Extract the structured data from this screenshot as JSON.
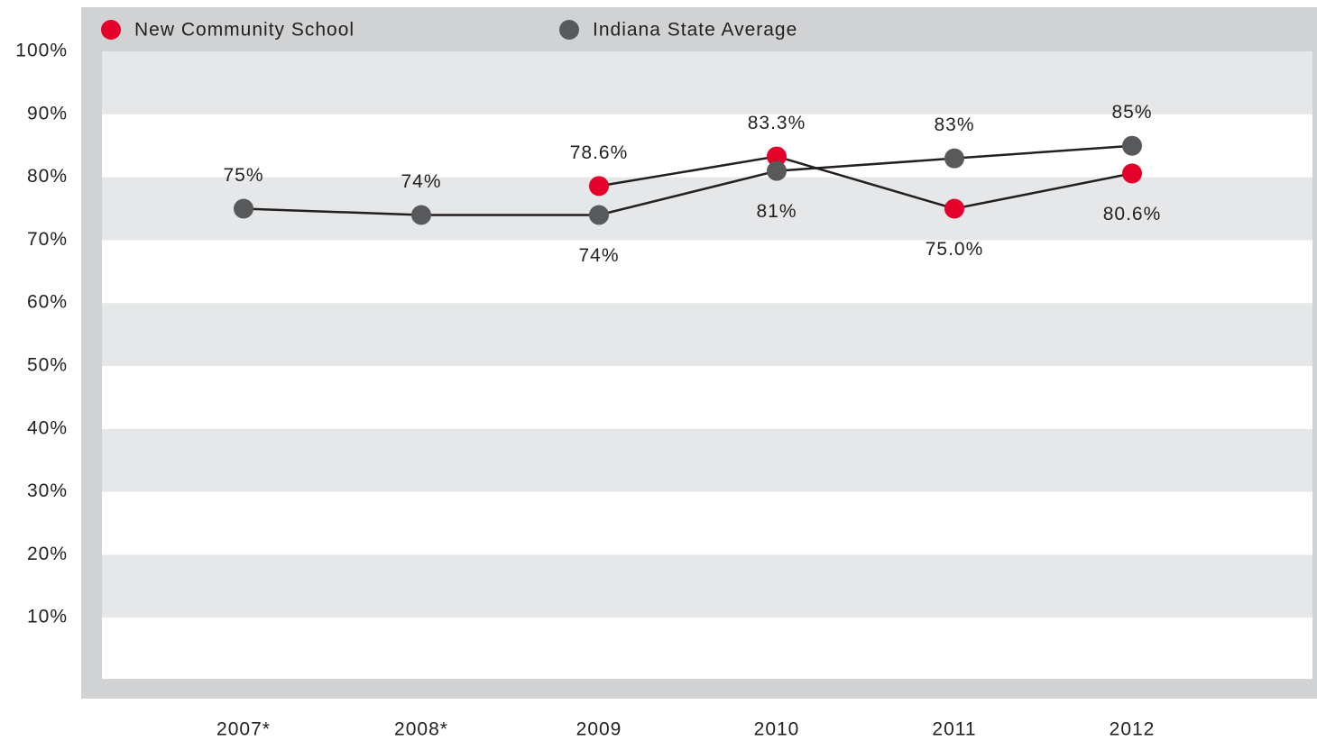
{
  "chart_data": {
    "type": "line",
    "categories": [
      "2007*",
      "2008*",
      "2009",
      "2010",
      "2011",
      "2012"
    ],
    "series": [
      {
        "name": "New Community School",
        "color": "#e4002b",
        "values": [
          null,
          null,
          78.6,
          83.3,
          75,
          80.6
        ],
        "value_labels": [
          null,
          null,
          "78.6%",
          "83.3%",
          "75.0%",
          "80.6%"
        ]
      },
      {
        "name": "Indiana State Average",
        "color": "#58595b",
        "values": [
          75,
          74,
          74,
          81,
          83,
          85
        ],
        "value_labels": [
          "75%",
          "74%",
          "74%",
          "81%",
          "83%",
          "85%"
        ]
      }
    ],
    "ylim": [
      0,
      100
    ],
    "yticks": [
      {
        "value": 10,
        "label": "10%"
      },
      {
        "value": 20,
        "label": "20%"
      },
      {
        "value": 30,
        "label": "30%"
      },
      {
        "value": 40,
        "label": "40%"
      },
      {
        "value": 50,
        "label": "50%"
      },
      {
        "value": 60,
        "label": "60%"
      },
      {
        "value": 70,
        "label": "70%"
      },
      {
        "value": 80,
        "label": "80%"
      },
      {
        "value": 90,
        "label": "90%"
      },
      {
        "value": 100,
        "label": "100%"
      }
    ],
    "grid": true
  }
}
